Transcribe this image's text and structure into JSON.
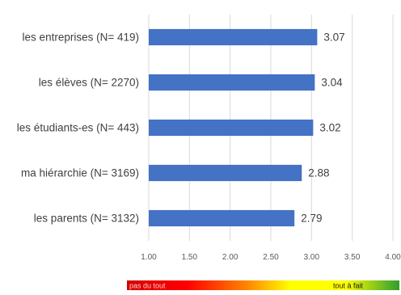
{
  "chart_data": {
    "type": "bar",
    "orientation": "horizontal",
    "categories": [
      "les entreprises (N= 419)",
      "les élèves (N= 2270)",
      "les étudiants-es (N= 443)",
      "ma hiérarchie (N= 3169)",
      "les parents (N= 3132)"
    ],
    "values": [
      3.07,
      3.04,
      3.02,
      2.88,
      2.79
    ],
    "value_labels": [
      "3.07",
      "3.04",
      "3.02",
      "2.88",
      "2.79"
    ],
    "xlim": [
      1.0,
      4.0
    ],
    "x_ticks": [
      "1.00",
      "1.50",
      "2.00",
      "2.50",
      "3.00",
      "3.50",
      "4.00"
    ],
    "grid": "vertical",
    "bar_color": "#4472C4",
    "title": "",
    "xlabel": "",
    "ylabel": ""
  },
  "legend_scale": {
    "min_label": "pas du tout",
    "max_label": "tout à fait",
    "colors": [
      "#D40000",
      "#FF0000",
      "#FF8C00",
      "#FFFF00",
      "#FFFF00",
      "#2E9E2E"
    ]
  }
}
